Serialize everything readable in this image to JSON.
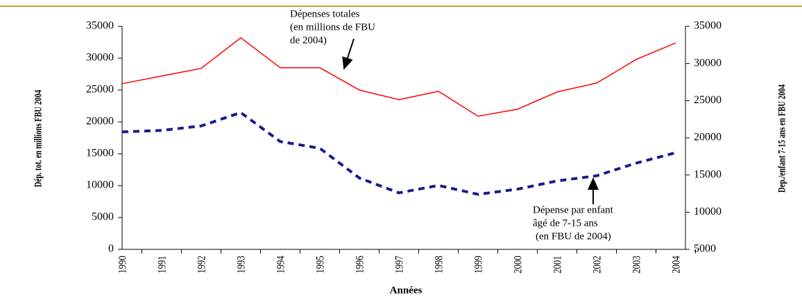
{
  "chart_data": {
    "type": "line",
    "x_label": "Années",
    "y_label": "Dép. tot. en millions FBU 2004",
    "y2_label": "Dep./enfant 7-15 ans en FBU 2004",
    "categories": [
      "1990",
      "1991",
      "1992",
      "1993",
      "1994",
      "1995",
      "1996",
      "1997",
      "1998",
      "1999",
      "2000",
      "2001",
      "2002",
      "2003",
      "2004"
    ],
    "series": [
      {
        "name": "Dépenses totales (en millions de FBU de 2004)",
        "color": "#ff0000",
        "style": "solid",
        "values": [
          26000,
          27200,
          28400,
          33200,
          28500,
          28500,
          25000,
          23500,
          24800,
          20900,
          22000,
          24700,
          26100,
          29800,
          32400
        ]
      },
      {
        "name": "Dépense par enfant âgé de 7-15 ans (en FBU de 2004)",
        "color": "#1a1a8c",
        "style": "dashed",
        "axis": "y2",
        "values": [
          20800,
          21000,
          21600,
          23400,
          19500,
          18600,
          14600,
          12600,
          13600,
          12400,
          13100,
          14200,
          14900,
          16600,
          18000
        ]
      }
    ],
    "annotations": [
      {
        "lines": [
          "Dépenses totales",
          "(en millions de FBU",
          "de 2004)"
        ]
      },
      {
        "lines": [
          "Dépense par enfant",
          "âgé de 7-15 ans",
          "(en FBU de 2004)"
        ]
      }
    ],
    "ylim": [
      0,
      35000
    ],
    "yticks": [
      0,
      5000,
      10000,
      15000,
      20000,
      25000,
      30000,
      35000
    ],
    "y2lim": [
      5000,
      35000
    ],
    "y2ticks": [
      5000,
      10000,
      15000,
      20000,
      25000,
      30000,
      35000
    ]
  }
}
